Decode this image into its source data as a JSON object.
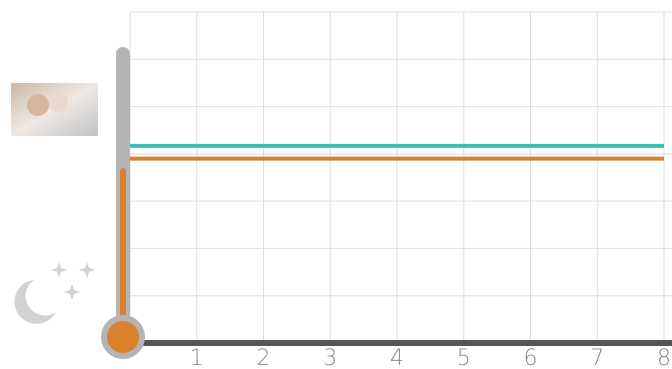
{
  "chart_data": {
    "type": "line",
    "x": [
      0,
      8
    ],
    "series": [
      {
        "color": "#3bbfb3",
        "values": [
          4.17,
          4.17
        ]
      },
      {
        "color": "#d9822b",
        "values": [
          3.9,
          3.9
        ]
      }
    ],
    "xlim": [
      0,
      8
    ],
    "xticks": [
      1,
      2,
      3,
      4,
      5,
      6,
      7,
      8
    ],
    "ylim": [
      0,
      7
    ],
    "grid": true,
    "gauge": {
      "value": 3.7,
      "color": "#d9822b"
    }
  }
}
